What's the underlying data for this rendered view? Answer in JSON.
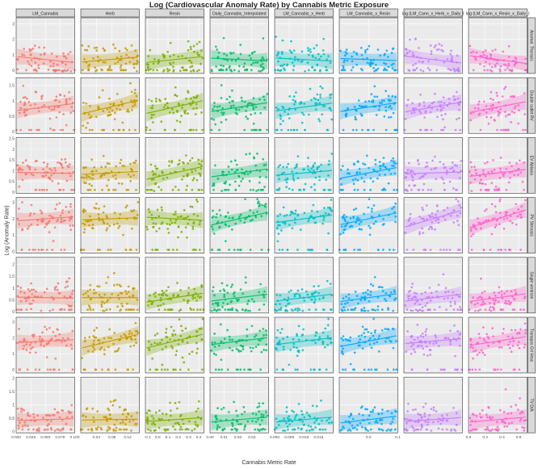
{
  "chart_data": {
    "type": "scatter",
    "title": "Log (Cardiovascular Anomaly Rate) by Cannabis Metric Exposure",
    "xlabel": "Cannabis Metric Rate",
    "ylabel": "Log (Anomaly Rate)",
    "grid": true,
    "legend": "none",
    "columns": [
      {
        "name": "LM_Cannabis",
        "color": "#f8766d",
        "xlim": [
          0.0,
          0.1
        ],
        "xticks": [
          "0.000",
          "0.025",
          "0.050",
          "0.075",
          "0.100"
        ],
        "xtick_values": [
          0.0,
          0.025,
          0.05,
          0.075,
          0.1
        ]
      },
      {
        "name": "Herb",
        "color": "#c49a00",
        "xlim": [
          0.0,
          0.15
        ],
        "xticks": [
          "0.04",
          "0.08",
          "0.12"
        ],
        "xtick_values": [
          0.04,
          0.08,
          0.12
        ]
      },
      {
        "name": "Resin",
        "color": "#7cae00",
        "xlim": [
          -0.12,
          0.45
        ],
        "xticks": [
          "-0.1",
          "0.0",
          "0.1",
          "0.2",
          "0.3",
          "0.4"
        ],
        "xtick_values": [
          -0.1,
          0.0,
          0.1,
          0.2,
          0.3,
          0.4
        ]
      },
      {
        "name": "Daily_Cannabis_Interpolated",
        "color": "#00be67",
        "xlim": [
          0.0,
          0.042
        ],
        "xticks": [
          "0.00",
          "0.01",
          "0.02",
          "0.03"
        ],
        "xtick_values": [
          0.0,
          0.01,
          0.02,
          0.03
        ]
      },
      {
        "name": "LM_Cannabis_x_Herb",
        "color": "#00bfc4",
        "xlim": [
          0.0,
          0.02
        ],
        "xticks": [
          "0.000",
          "0.005",
          "0.010",
          "0.015"
        ],
        "xtick_values": [
          0.0,
          0.005,
          0.01,
          0.015
        ]
      },
      {
        "name": "LM_Cannabis_x_Resin",
        "color": "#00a9ff",
        "xlim": [
          -0.1,
          0.1
        ],
        "xticks": [
          "0.0",
          "0.1"
        ],
        "xtick_values": [
          0.0,
          0.1
        ]
      },
      {
        "name": "log (LM_Cann_x_Herb_x_Daily_I",
        "color": "#c77cff",
        "xlim": [
          0.0,
          0.5
        ],
        "xticks": [],
        "xtick_values": []
      },
      {
        "name": "log (LM_Cann_x_Resin_x_Daily_I",
        "color": "#ff61cc",
        "xlim": [
          0.0,
          0.7
        ],
        "xticks": [
          "0.0",
          "0.2",
          "0.4",
          "0.6"
        ],
        "xtick_values": [
          0.0,
          0.2,
          0.4,
          0.6
        ]
      }
    ],
    "rows": [
      {
        "name": "Anomal. Thoracic",
        "ylim": [
          -0.2,
          3.4
        ],
        "yticks": [
          0,
          1,
          2,
          3
        ],
        "intercept": 0.7,
        "slopes": [
          -0.3,
          0.25,
          0.3,
          -0.15,
          -0.15,
          -0.1,
          -0.35,
          -0.4
        ]
      },
      {
        "name": "Double outlet RV",
        "ylim": [
          -0.05,
          1.75
        ],
        "yticks": [
          0.0,
          0.5,
          1.0,
          1.5
        ],
        "intercept": 0.8,
        "slopes": [
          0.35,
          0.7,
          0.65,
          0.45,
          0.4,
          0.45,
          0.5,
          0.55
        ]
      },
      {
        "name": "EV Ablaxia",
        "ylim": [
          -0.05,
          2.55
        ],
        "yticks": [
          0.0,
          0.5,
          1.0,
          1.5,
          2.0,
          2.5
        ],
        "intercept": 0.9,
        "slopes": [
          -0.05,
          0.15,
          0.65,
          0.4,
          0.25,
          0.55,
          0.1,
          0.35
        ]
      },
      {
        "name": "PV Stenosis",
        "ylim": [
          -0.1,
          3.3
        ],
        "yticks": [
          0,
          1,
          2,
          3
        ],
        "intercept": 2.0,
        "slopes": [
          0.2,
          0.1,
          -0.15,
          0.65,
          0.4,
          0.6,
          0.85,
          0.9
        ]
      },
      {
        "name": "Single ventricle",
        "ylim": [
          -0.05,
          2.3
        ],
        "yticks": [
          0.0,
          0.5,
          1.0,
          1.5,
          2.0
        ],
        "intercept": 0.6,
        "slopes": [
          -0.05,
          0.0,
          0.45,
          0.35,
          0.35,
          0.4,
          0.35,
          0.4
        ]
      },
      {
        "name": "Transpos Grt Vess",
        "ylim": [
          -0.2,
          3.3
        ],
        "yticks": [
          0,
          1,
          2,
          3
        ],
        "intercept": 1.8,
        "slopes": [
          0.15,
          0.7,
          0.7,
          0.35,
          0.35,
          0.55,
          0.25,
          0.45
        ]
      },
      {
        "name": "TV D/A",
        "ylim": [
          -0.05,
          2.05
        ],
        "yticks": [
          0.0,
          0.5,
          1.0,
          1.5,
          2.0
        ],
        "intercept": 0.45,
        "slopes": [
          0.1,
          0.05,
          0.2,
          0.25,
          0.25,
          0.35,
          0.2,
          0.25
        ]
      }
    ]
  }
}
